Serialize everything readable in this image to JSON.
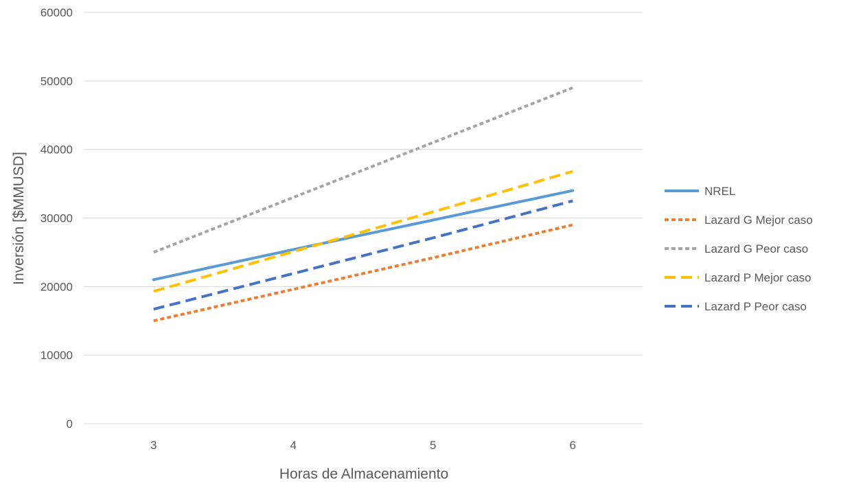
{
  "chart_data": {
    "type": "line",
    "xlabel": "Horas de Almacenamiento",
    "ylabel": "Inversión [$MMUSD]",
    "x": [
      3,
      4,
      5,
      6
    ],
    "x_tick_labels": [
      "3",
      "4",
      "5",
      "6"
    ],
    "y_tick_labels": [
      "0",
      "10000",
      "20000",
      "30000",
      "40000",
      "50000",
      "60000"
    ],
    "ylim": [
      0,
      60000
    ],
    "grid": "horizontal",
    "legend_position": "right",
    "series": [
      {
        "name": "NREL",
        "values": [
          21000,
          25400,
          29700,
          34000
        ],
        "color": "#5B9BD5",
        "style": "solid"
      },
      {
        "name": "Lazard G Mejor caso",
        "values": [
          15000,
          19600,
          24200,
          29000
        ],
        "color": "#ED7D31",
        "style": "dotted"
      },
      {
        "name": "Lazard G Peor caso",
        "values": [
          25000,
          33000,
          41000,
          49000
        ],
        "color": "#A5A5A5",
        "style": "dotted"
      },
      {
        "name": "Lazard P Mejor caso",
        "values": [
          19300,
          25100,
          30900,
          36800
        ],
        "color": "#FFC000",
        "style": "dashed"
      },
      {
        "name": "Lazard P Peor caso",
        "values": [
          16700,
          21900,
          27100,
          32500
        ],
        "color": "#4472C4",
        "style": "dashed"
      }
    ]
  }
}
